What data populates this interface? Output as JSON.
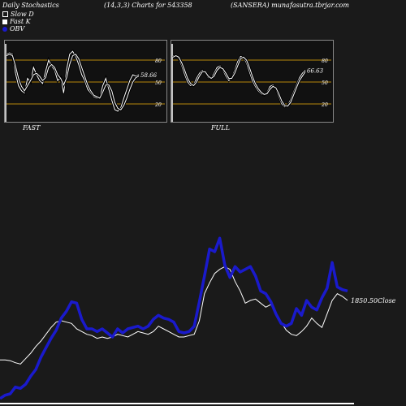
{
  "header": {
    "left": "Daily Stochastics",
    "middle": "(14,3,3) Charts for 543358",
    "right": "(SANSERA) munafasutra.tbrjar.com"
  },
  "legend": [
    {
      "label": "Slow  D",
      "color": "#ffffff",
      "shape": "square-outline"
    },
    {
      "label": "Fast K",
      "color": "#ffffff",
      "shape": "square-filled"
    },
    {
      "label": "OBV",
      "color": "#0000cc",
      "shape": "circle"
    }
  ],
  "colors": {
    "background": "#1a1a1a",
    "panel": "#111111",
    "band": "#b8860b",
    "obv": "#1a1acc",
    "price": "#ffffff"
  },
  "chart_data": [
    {
      "type": "line",
      "label": "FAST",
      "ylim": [
        0,
        100
      ],
      "levels": [
        20,
        50,
        80
      ],
      "tick_labels": [
        "20",
        "50",
        "80"
      ],
      "last_value_label": "58.66",
      "series": [
        {
          "name": "Fast K",
          "values": [
            88,
            90,
            88,
            62,
            45,
            38,
            35,
            55,
            50,
            70,
            60,
            52,
            48,
            65,
            80,
            72,
            66,
            52,
            56,
            35,
            68,
            88,
            92,
            85,
            74,
            60,
            52,
            40,
            35,
            30,
            28,
            28,
            45,
            55,
            40,
            25,
            12,
            10,
            15,
            28,
            40,
            52,
            60,
            58,
            60
          ]
        },
        {
          "name": "Slow  D",
          "values": [
            86,
            88,
            86,
            72,
            55,
            44,
            38,
            45,
            52,
            60,
            62,
            58,
            52,
            56,
            70,
            74,
            70,
            60,
            55,
            46,
            56,
            74,
            86,
            88,
            82,
            70,
            58,
            46,
            38,
            32,
            30,
            28,
            36,
            46,
            46,
            38,
            22,
            14,
            12,
            18,
            28,
            40,
            50,
            56,
            58
          ]
        }
      ]
    },
    {
      "type": "line",
      "label": "FULL",
      "ylim": [
        0,
        100
      ],
      "levels": [
        20,
        50,
        80
      ],
      "tick_labels": [
        "20",
        "50",
        "80"
      ],
      "last_value_label": "66.63",
      "series": [
        {
          "name": "Fast K",
          "values": [
            86,
            86,
            82,
            72,
            60,
            50,
            45,
            46,
            55,
            62,
            66,
            62,
            56,
            55,
            62,
            70,
            72,
            66,
            58,
            52,
            56,
            66,
            78,
            85,
            84,
            76,
            64,
            52,
            44,
            38,
            34,
            32,
            36,
            44,
            46,
            40,
            30,
            20,
            16,
            18,
            26,
            36,
            46,
            56,
            62,
            66
          ]
        },
        {
          "name": "Slow  D",
          "values": [
            84,
            86,
            84,
            76,
            66,
            55,
            48,
            45,
            50,
            58,
            64,
            64,
            58,
            55,
            58,
            66,
            70,
            68,
            62,
            55,
            55,
            62,
            72,
            82,
            84,
            80,
            70,
            58,
            48,
            41,
            36,
            33,
            34,
            40,
            44,
            42,
            34,
            24,
            18,
            17,
            22,
            32,
            42,
            52,
            58,
            64
          ]
        }
      ]
    },
    {
      "type": "line",
      "label": "price-obv",
      "ylim": [
        0,
        300
      ],
      "last_value_label": "1850.50Close",
      "series": [
        {
          "name": "Close",
          "values": [
            62,
            62,
            61,
            58,
            56,
            64,
            72,
            82,
            90,
            100,
            110,
            118,
            120,
            118,
            116,
            108,
            104,
            100,
            98,
            94,
            96,
            94,
            96,
            100,
            98,
            96,
            100,
            104,
            102,
            100,
            104,
            112,
            108,
            104,
            100,
            96,
            96,
            98,
            100,
            120,
            160,
            176,
            190,
            196,
            200,
            196,
            178,
            164,
            146,
            150,
            152,
            146,
            140,
            144,
            130,
            118,
            106,
            100,
            98,
            104,
            112,
            124,
            116,
            110,
            130,
            150,
            160,
            156,
            150
          ]
        },
        {
          "name": "OBV",
          "values": [
            5,
            10,
            12,
            22,
            20,
            26,
            38,
            48,
            66,
            80,
            94,
            106,
            124,
            134,
            148,
            146,
            122,
            108,
            108,
            104,
            108,
            102,
            96,
            108,
            102,
            108,
            110,
            112,
            108,
            112,
            122,
            128,
            124,
            122,
            118,
            104,
            102,
            104,
            112,
            148,
            186,
            226,
            222,
            242,
            202,
            184,
            200,
            192,
            196,
            200,
            186,
            164,
            160,
            148,
            130,
            116,
            112,
            116,
            138,
            128,
            150,
            140,
            136,
            154,
            168,
            206,
            170,
            166,
            164
          ]
        }
      ]
    }
  ]
}
